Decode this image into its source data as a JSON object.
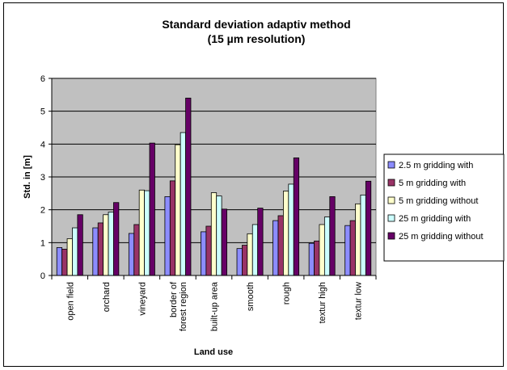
{
  "chart_data": {
    "type": "bar",
    "title": "Standard deviation adaptiv method",
    "subtitle": "(15 µm resolution)",
    "xlabel": "Land use",
    "ylabel": "Std. in [m]",
    "ylim": [
      0,
      6
    ],
    "yticks": [
      "0",
      "1",
      "2",
      "3",
      "4",
      "5",
      "6"
    ],
    "grid": true,
    "legend_position": "right",
    "categories": [
      "open field",
      "orchard",
      "vineyard",
      "border of forest region",
      "built-up area",
      "smooth",
      "rough",
      "textur high",
      "textur low"
    ],
    "category_label_lines": [
      [
        "open field"
      ],
      [
        "orchard"
      ],
      [
        "vineyard"
      ],
      [
        "border of",
        "forest region"
      ],
      [
        "built-up area"
      ],
      [
        "smooth"
      ],
      [
        "rough"
      ],
      [
        "textur high"
      ],
      [
        "textur low"
      ]
    ],
    "series": [
      {
        "name": "2.5 m gridding with",
        "color": "#8C8CFF",
        "values": [
          0.85,
          1.45,
          1.28,
          2.4,
          1.33,
          0.82,
          1.67,
          0.98,
          1.52
        ]
      },
      {
        "name": "5 m  gridding with",
        "color": "#993366",
        "values": [
          0.8,
          1.6,
          1.55,
          2.88,
          1.5,
          0.92,
          1.82,
          1.05,
          1.67
        ]
      },
      {
        "name": "5 m  gridding without",
        "color": "#FFFFCC",
        "values": [
          1.12,
          1.85,
          2.6,
          3.98,
          2.52,
          1.27,
          2.57,
          1.55,
          2.18
        ]
      },
      {
        "name": "25 m  gridding with",
        "color": "#CCFFFF",
        "values": [
          1.45,
          1.93,
          2.58,
          4.35,
          2.42,
          1.55,
          2.78,
          1.78,
          2.45
        ]
      },
      {
        "name": "25 m  gridding without",
        "color": "#660066",
        "values": [
          1.85,
          2.22,
          4.03,
          5.4,
          2.02,
          2.05,
          3.58,
          2.4,
          2.87
        ]
      }
    ]
  },
  "colors": {
    "plot_background": "#C0C0C0",
    "gridline": "#000000"
  }
}
